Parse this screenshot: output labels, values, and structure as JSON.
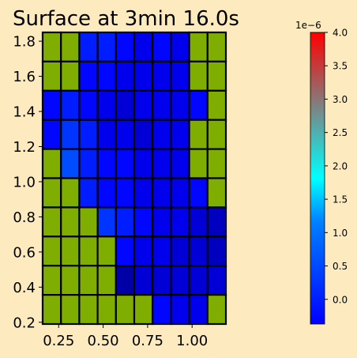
{
  "chart_data": {
    "type": "heatmap",
    "title": "Surface at 3min 16.0s",
    "xlabel": "",
    "ylabel": "",
    "x_ticks": [
      "0.25",
      "0.50",
      "0.75",
      "1.00"
    ],
    "x_tick_values": [
      0.25,
      0.5,
      0.75,
      1.0
    ],
    "y_ticks": [
      "0.2",
      "0.4",
      "0.6",
      "0.8",
      "1.0",
      "1.2",
      "1.4",
      "1.6",
      "1.8"
    ],
    "y_tick_values": [
      0.2,
      0.4,
      0.6,
      0.8,
      1.0,
      1.2,
      1.4,
      1.6,
      1.8
    ],
    "xlim": [
      0.16,
      1.19
    ],
    "ylim": [
      0.19,
      1.85
    ],
    "grid": false,
    "columns": 10,
    "rows": 10,
    "cell_values": [
      [
        null,
        null,
        0.3,
        0.3,
        0.2,
        0.1,
        0.2,
        0.1,
        null,
        null
      ],
      [
        null,
        null,
        0.2,
        0.2,
        0.1,
        0.1,
        0.1,
        0.1,
        null,
        null
      ],
      [
        0.2,
        0.3,
        0.2,
        0.1,
        0.0,
        0.1,
        0.1,
        0.1,
        0.2,
        null
      ],
      [
        0.2,
        0.4,
        0.3,
        0.1,
        0.1,
        0.0,
        0.1,
        0.1,
        null,
        null
      ],
      [
        null,
        0.5,
        0.3,
        0.2,
        0.2,
        0.1,
        0.1,
        0.1,
        null,
        null
      ],
      [
        null,
        null,
        0.3,
        0.2,
        0.2,
        0.1,
        0.1,
        0.1,
        0.2,
        null
      ],
      [
        null,
        null,
        null,
        0.4,
        0.3,
        0.2,
        0.1,
        0.1,
        0.0,
        -0.1
      ],
      [
        null,
        null,
        null,
        null,
        0.2,
        0.1,
        0.1,
        0.0,
        0.0,
        -0.1
      ],
      [
        null,
        null,
        null,
        null,
        -0.2,
        0.0,
        0.0,
        0.0,
        0.0,
        0.0
      ],
      [
        null,
        null,
        null,
        null,
        null,
        null,
        0.2,
        0.1,
        0.1,
        null
      ]
    ],
    "colorbar": {
      "offset_text": "1e−6",
      "ticks": [
        "0.0",
        "0.5",
        "1.0",
        "1.5",
        "2.0",
        "2.5",
        "3.0",
        "3.5",
        "4.0"
      ],
      "tick_values": [
        0.0,
        0.5,
        1.0,
        1.5,
        2.0,
        2.5,
        3.0,
        3.5,
        4.0
      ],
      "range": [
        -0.37,
        4.0
      ]
    },
    "colors": {
      "no_data": "#7fae00",
      "background": "#fdebbf",
      "cell_edge": "#000000"
    }
  }
}
